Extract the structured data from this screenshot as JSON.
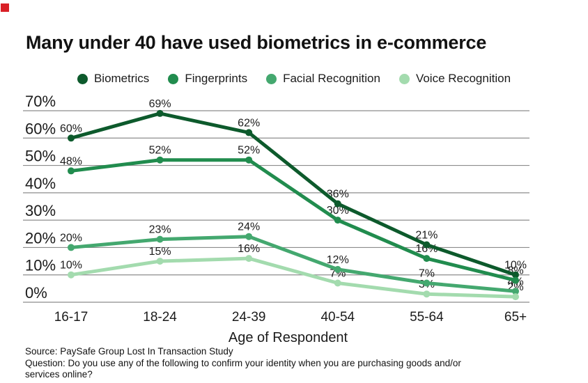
{
  "marker": {
    "color": "#d92027"
  },
  "title": "Many under 40 have used biometrics in e-commerce",
  "chart_data": {
    "type": "line",
    "title": "Many under 40 have used biometrics in e-commerce",
    "categories": [
      "16-17",
      "18-24",
      "24-39",
      "40-54",
      "55-64",
      "65+"
    ],
    "series": [
      {
        "name": "Biometrics",
        "color": "#0d5a2c",
        "values": [
          60,
          69,
          62,
          36,
          21,
          10
        ]
      },
      {
        "name": "Fingerprints",
        "color": "#218c4e",
        "values": [
          48,
          52,
          52,
          30,
          16,
          8
        ]
      },
      {
        "name": "Facial Recognition",
        "color": "#44a86f",
        "values": [
          20,
          23,
          24,
          12,
          7,
          4
        ]
      },
      {
        "name": "Voice Recognition",
        "color": "#a3dbae",
        "values": [
          10,
          15,
          16,
          7,
          3,
          2
        ]
      }
    ],
    "ylim": [
      0,
      70
    ],
    "yticks": [
      0,
      10,
      20,
      30,
      40,
      50,
      60,
      70
    ],
    "ytick_suffix": "%",
    "point_label_suffix": "%",
    "xlabel": "Age of Respondent",
    "grid": true,
    "gridline_color": "#8c8c8c",
    "legend_position": "top",
    "text_color": "#1b1b1b"
  },
  "footer": {
    "source": "Source: PaySafe Group Lost In Transaction Study",
    "question_lines": [
      "Question: Do you use any of the following to confirm your identity when you are purchasing goods and/or",
      "services online?"
    ]
  }
}
